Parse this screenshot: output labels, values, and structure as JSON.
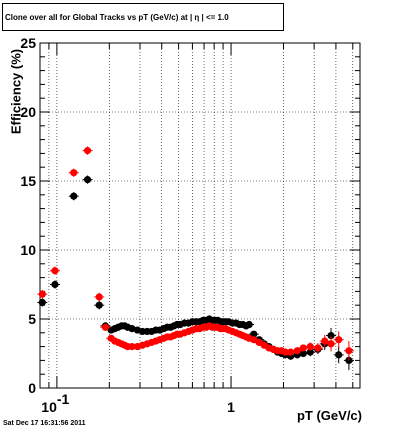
{
  "title": "Clone  over all for Global Tracks vs pT (GeV/c) at |  η | <= 1.0",
  "footer": "Sat Dec 17 16:31:56 2011",
  "chart_data": {
    "type": "scatter",
    "title": "Clone  over all for Global Tracks vs pT (GeV/c) at |  η | <= 1.0",
    "xlabel": "pT (GeV/c)",
    "ylabel": "Efficiency (%)",
    "xscale": "log",
    "xlim": [
      0.08,
      5.5
    ],
    "ylim": [
      0,
      25
    ],
    "grid": true,
    "x_tick_labels": [
      {
        "value": 0.1,
        "base": "10",
        "exp": "-1"
      },
      {
        "value": 1,
        "base": "1",
        "exp": ""
      }
    ],
    "y_ticks": [
      0,
      5,
      10,
      15,
      20,
      25
    ],
    "series": [
      {
        "color": "#000000",
        "points": [
          [
            0.0825,
            6.2,
            0.3
          ],
          [
            0.0975,
            7.5,
            0.3
          ],
          [
            0.125,
            13.9,
            0.3
          ],
          [
            0.15,
            15.1,
            0.3
          ],
          [
            0.175,
            6.0,
            0.3
          ],
          [
            0.19,
            4.5,
            0.2
          ],
          [
            0.205,
            4.2,
            0.15
          ],
          [
            0.215,
            4.3,
            0.15
          ],
          [
            0.225,
            4.4,
            0.15
          ],
          [
            0.235,
            4.5,
            0.15
          ],
          [
            0.245,
            4.5,
            0.15
          ],
          [
            0.255,
            4.4,
            0.15
          ],
          [
            0.27,
            4.3,
            0.12
          ],
          [
            0.29,
            4.2,
            0.12
          ],
          [
            0.31,
            4.1,
            0.12
          ],
          [
            0.33,
            4.1,
            0.12
          ],
          [
            0.35,
            4.1,
            0.12
          ],
          [
            0.37,
            4.2,
            0.12
          ],
          [
            0.39,
            4.2,
            0.12
          ],
          [
            0.41,
            4.3,
            0.12
          ],
          [
            0.43,
            4.4,
            0.12
          ],
          [
            0.45,
            4.4,
            0.12
          ],
          [
            0.47,
            4.5,
            0.12
          ],
          [
            0.49,
            4.6,
            0.12
          ],
          [
            0.51,
            4.6,
            0.12
          ],
          [
            0.54,
            4.7,
            0.12
          ],
          [
            0.57,
            4.7,
            0.12
          ],
          [
            0.6,
            4.8,
            0.12
          ],
          [
            0.63,
            4.8,
            0.12
          ],
          [
            0.66,
            4.8,
            0.12
          ],
          [
            0.69,
            4.9,
            0.12
          ],
          [
            0.72,
            4.9,
            0.12
          ],
          [
            0.75,
            5.0,
            0.12
          ],
          [
            0.78,
            4.9,
            0.12
          ],
          [
            0.81,
            4.9,
            0.12
          ],
          [
            0.84,
            4.9,
            0.12
          ],
          [
            0.87,
            4.8,
            0.12
          ],
          [
            0.9,
            4.8,
            0.12
          ],
          [
            0.93,
            4.8,
            0.12
          ],
          [
            0.97,
            4.8,
            0.12
          ],
          [
            1.02,
            4.7,
            0.12
          ],
          [
            1.07,
            4.7,
            0.12
          ],
          [
            1.12,
            4.6,
            0.12
          ],
          [
            1.17,
            4.6,
            0.12
          ],
          [
            1.22,
            4.5,
            0.12
          ],
          [
            1.27,
            4.6,
            0.12
          ],
          [
            1.35,
            3.9,
            0.15
          ],
          [
            1.45,
            3.5,
            0.15
          ],
          [
            1.55,
            3.2,
            0.15
          ],
          [
            1.65,
            3.0,
            0.15
          ],
          [
            1.75,
            2.8,
            0.15
          ],
          [
            1.85,
            2.6,
            0.15
          ],
          [
            1.95,
            2.5,
            0.15
          ],
          [
            2.05,
            2.4,
            0.15
          ],
          [
            2.2,
            2.3,
            0.2
          ],
          [
            2.4,
            2.4,
            0.2
          ],
          [
            2.6,
            2.5,
            0.25
          ],
          [
            2.85,
            2.6,
            0.3
          ],
          [
            3.15,
            2.8,
            0.35
          ],
          [
            3.45,
            3.2,
            0.45
          ],
          [
            3.75,
            3.8,
            0.55
          ],
          [
            4.15,
            2.4,
            0.6
          ],
          [
            4.75,
            2.0,
            0.7
          ]
        ]
      },
      {
        "color": "#ff0000",
        "points": [
          [
            0.0825,
            6.8,
            0.3
          ],
          [
            0.0975,
            8.5,
            0.3
          ],
          [
            0.125,
            15.6,
            0.3
          ],
          [
            0.15,
            17.2,
            0.3
          ],
          [
            0.175,
            6.6,
            0.3
          ],
          [
            0.19,
            4.4,
            0.2
          ],
          [
            0.205,
            3.6,
            0.15
          ],
          [
            0.215,
            3.4,
            0.15
          ],
          [
            0.225,
            3.3,
            0.15
          ],
          [
            0.235,
            3.2,
            0.15
          ],
          [
            0.245,
            3.1,
            0.15
          ],
          [
            0.255,
            3.0,
            0.15
          ],
          [
            0.27,
            3.0,
            0.12
          ],
          [
            0.29,
            3.0,
            0.12
          ],
          [
            0.31,
            3.1,
            0.12
          ],
          [
            0.33,
            3.2,
            0.12
          ],
          [
            0.35,
            3.3,
            0.12
          ],
          [
            0.37,
            3.4,
            0.12
          ],
          [
            0.39,
            3.5,
            0.12
          ],
          [
            0.41,
            3.6,
            0.12
          ],
          [
            0.43,
            3.7,
            0.12
          ],
          [
            0.45,
            3.7,
            0.12
          ],
          [
            0.47,
            3.8,
            0.12
          ],
          [
            0.49,
            3.9,
            0.12
          ],
          [
            0.51,
            3.9,
            0.12
          ],
          [
            0.54,
            4.0,
            0.12
          ],
          [
            0.57,
            4.1,
            0.12
          ],
          [
            0.6,
            4.2,
            0.12
          ],
          [
            0.63,
            4.3,
            0.12
          ],
          [
            0.66,
            4.3,
            0.12
          ],
          [
            0.69,
            4.4,
            0.12
          ],
          [
            0.72,
            4.4,
            0.12
          ],
          [
            0.75,
            4.5,
            0.12
          ],
          [
            0.78,
            4.4,
            0.12
          ],
          [
            0.81,
            4.4,
            0.12
          ],
          [
            0.84,
            4.4,
            0.12
          ],
          [
            0.87,
            4.3,
            0.12
          ],
          [
            0.9,
            4.3,
            0.12
          ],
          [
            0.93,
            4.3,
            0.12
          ],
          [
            0.97,
            4.2,
            0.12
          ],
          [
            1.02,
            4.1,
            0.12
          ],
          [
            1.07,
            4.0,
            0.12
          ],
          [
            1.12,
            3.9,
            0.12
          ],
          [
            1.17,
            3.8,
            0.12
          ],
          [
            1.22,
            3.7,
            0.12
          ],
          [
            1.27,
            3.6,
            0.12
          ],
          [
            1.35,
            3.5,
            0.15
          ],
          [
            1.45,
            3.3,
            0.15
          ],
          [
            1.55,
            3.1,
            0.15
          ],
          [
            1.65,
            2.9,
            0.15
          ],
          [
            1.75,
            2.8,
            0.15
          ],
          [
            1.85,
            2.7,
            0.15
          ],
          [
            1.95,
            2.7,
            0.15
          ],
          [
            2.05,
            2.6,
            0.15
          ],
          [
            2.2,
            2.6,
            0.2
          ],
          [
            2.4,
            2.7,
            0.2
          ],
          [
            2.6,
            2.9,
            0.25
          ],
          [
            2.85,
            3.0,
            0.3
          ],
          [
            3.15,
            2.9,
            0.35
          ],
          [
            3.45,
            3.4,
            0.45
          ],
          [
            3.75,
            3.2,
            0.55
          ],
          [
            4.15,
            3.5,
            0.6
          ],
          [
            4.75,
            2.7,
            0.7
          ]
        ]
      }
    ]
  }
}
